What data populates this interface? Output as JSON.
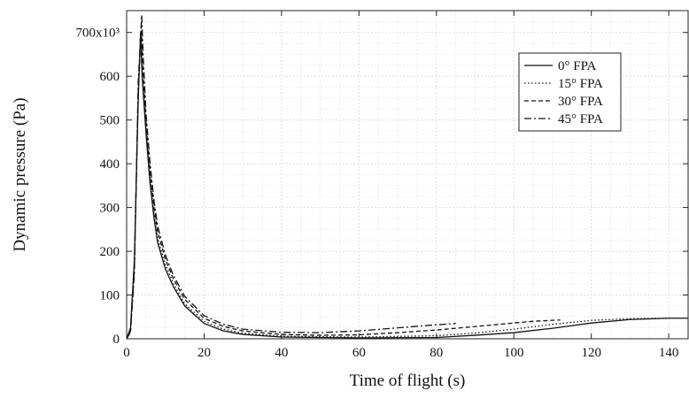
{
  "chart_data": {
    "type": "line",
    "title": "",
    "xlabel": "Time of flight (s)",
    "ylabel": "Dynamic pressure (Pa)",
    "xlim": [
      0,
      145
    ],
    "ylim": [
      0,
      750000
    ],
    "x_ticks": [
      {
        "value": 0,
        "label": "0"
      },
      {
        "value": 20,
        "label": "20"
      },
      {
        "value": 40,
        "label": "40"
      },
      {
        "value": 60,
        "label": "60"
      },
      {
        "value": 80,
        "label": "80"
      },
      {
        "value": 100,
        "label": "100"
      },
      {
        "value": 120,
        "label": "120"
      },
      {
        "value": 140,
        "label": "140"
      }
    ],
    "y_ticks": [
      {
        "value": 0,
        "label": "0"
      },
      {
        "value": 100000,
        "label": "100"
      },
      {
        "value": 200000,
        "label": "200"
      },
      {
        "value": 300000,
        "label": "300"
      },
      {
        "value": 400000,
        "label": "400"
      },
      {
        "value": 500000,
        "label": "500"
      },
      {
        "value": 600000,
        "label": "600"
      },
      {
        "value": 700000,
        "label": "700x10³"
      }
    ],
    "grid": true,
    "legend_position": "top-right",
    "series": [
      {
        "name": "0° FPA",
        "dash": "solid",
        "points": [
          [
            0,
            0
          ],
          [
            1,
            25000
          ],
          [
            2,
            180000
          ],
          [
            3,
            550000
          ],
          [
            3.6,
            700000
          ],
          [
            4,
            600000
          ],
          [
            5,
            470000
          ],
          [
            6,
            360000
          ],
          [
            7,
            280000
          ],
          [
            8,
            220000
          ],
          [
            10,
            160000
          ],
          [
            12,
            120000
          ],
          [
            15,
            75000
          ],
          [
            20,
            35000
          ],
          [
            25,
            18000
          ],
          [
            30,
            10000
          ],
          [
            40,
            4000
          ],
          [
            60,
            2000
          ],
          [
            80,
            3000
          ],
          [
            90,
            8000
          ],
          [
            100,
            14000
          ],
          [
            110,
            24000
          ],
          [
            120,
            36000
          ],
          [
            130,
            44000
          ],
          [
            140,
            47000
          ],
          [
            145,
            47000
          ]
        ]
      },
      {
        "name": "15° FPA",
        "dash": "dotted",
        "points": [
          [
            0,
            0
          ],
          [
            1,
            20000
          ],
          [
            2,
            170000
          ],
          [
            3,
            560000
          ],
          [
            3.7,
            705000
          ],
          [
            4,
            610000
          ],
          [
            5,
            480000
          ],
          [
            6,
            370000
          ],
          [
            7,
            290000
          ],
          [
            8,
            230000
          ],
          [
            10,
            170000
          ],
          [
            12,
            128000
          ],
          [
            15,
            80000
          ],
          [
            20,
            40000
          ],
          [
            25,
            22000
          ],
          [
            30,
            13000
          ],
          [
            40,
            6000
          ],
          [
            60,
            4000
          ],
          [
            80,
            7000
          ],
          [
            90,
            13000
          ],
          [
            100,
            22000
          ],
          [
            110,
            33000
          ],
          [
            120,
            42000
          ],
          [
            130,
            46000
          ],
          [
            140,
            47000
          ]
        ]
      },
      {
        "name": "30° FPA",
        "dash": "dashed",
        "points": [
          [
            0,
            0
          ],
          [
            1,
            18000
          ],
          [
            2,
            160000
          ],
          [
            3,
            570000
          ],
          [
            3.8,
            715000
          ],
          [
            4.2,
            620000
          ],
          [
            5,
            500000
          ],
          [
            6,
            390000
          ],
          [
            7,
            305000
          ],
          [
            8,
            245000
          ],
          [
            10,
            182000
          ],
          [
            12,
            138000
          ],
          [
            15,
            90000
          ],
          [
            20,
            47000
          ],
          [
            25,
            28000
          ],
          [
            30,
            18000
          ],
          [
            40,
            10000
          ],
          [
            50,
            8000
          ],
          [
            60,
            9000
          ],
          [
            70,
            14000
          ],
          [
            80,
            20000
          ],
          [
            90,
            28000
          ],
          [
            100,
            36000
          ],
          [
            105,
            40000
          ],
          [
            112,
            43000
          ]
        ]
      },
      {
        "name": "45° FPA",
        "dash": "dashdot",
        "points": [
          [
            0,
            0
          ],
          [
            1,
            15000
          ],
          [
            2,
            150000
          ],
          [
            3,
            590000
          ],
          [
            3.9,
            740000
          ],
          [
            4.3,
            640000
          ],
          [
            5,
            515000
          ],
          [
            6,
            405000
          ],
          [
            7,
            320000
          ],
          [
            8,
            258000
          ],
          [
            10,
            192000
          ],
          [
            12,
            146000
          ],
          [
            15,
            97000
          ],
          [
            20,
            53000
          ],
          [
            25,
            33000
          ],
          [
            30,
            22000
          ],
          [
            40,
            15000
          ],
          [
            50,
            14000
          ],
          [
            60,
            18000
          ],
          [
            70,
            25000
          ],
          [
            80,
            32000
          ],
          [
            85,
            35000
          ]
        ]
      }
    ]
  }
}
